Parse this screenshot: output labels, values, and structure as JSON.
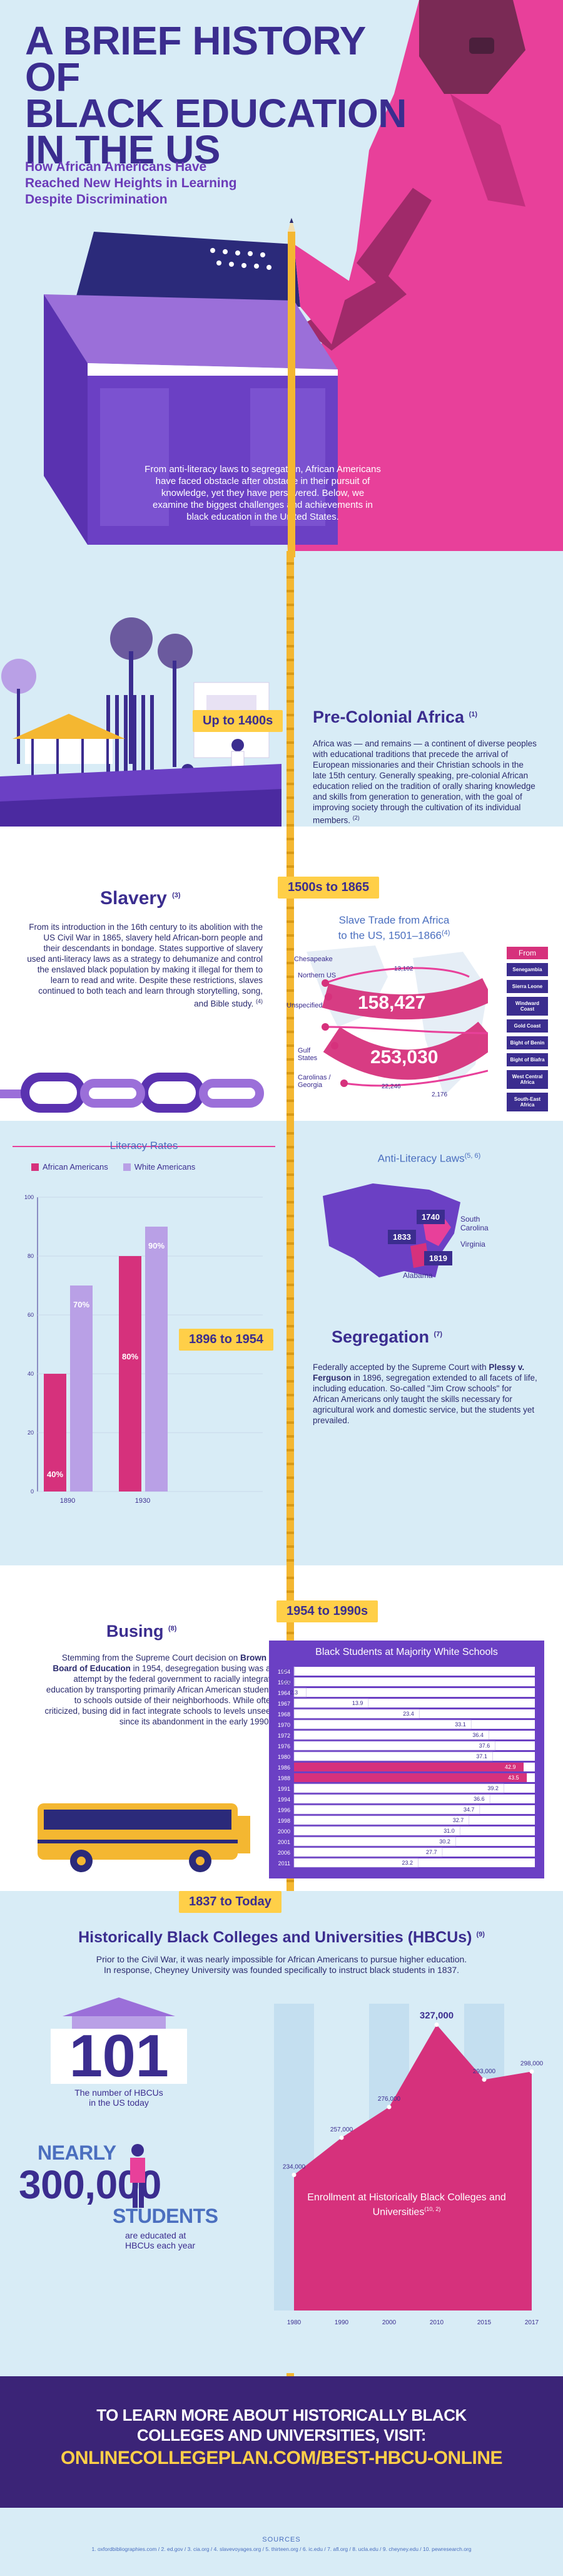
{
  "header": {
    "title_line1": "A BRIEF HISTORY OF",
    "title_line2": "BLACK EDUCATION",
    "title_line3": "IN THE US",
    "subtitle_line1": "How African Americans Have",
    "subtitle_line2": "Reached New Heights in Learning",
    "subtitle_line3": "Despite Discrimination"
  },
  "intro": "From anti-literacy laws to segregation, African Americans have faced obstacle after obstacle in their pursuit of knowledge, yet they have persevered. Below, we examine the biggest challenges and achievements in black education in the United States.",
  "periods": {
    "p1": "Up to 1400s",
    "p2": "1500s to 1865",
    "p3": "1896 to 1954",
    "p4": "1954 to 1990s",
    "p5": "1837 to Today"
  },
  "precolonial": {
    "title": "Pre-Colonial Africa",
    "ref": "(1)",
    "body": "Africa was — and remains — a continent of diverse peoples with educational traditions that precede the arrival of European missionaries and their Christian schools in the late 15th century. Generally speaking, pre-colonial African education relied on the tradition of orally sharing knowledge and skills from generation to generation, with the goal of improving society through the cultivation of its individual members.",
    "body_ref": "(2)"
  },
  "slavery": {
    "title": "Slavery",
    "ref": "(3)",
    "body": "From its introduction in the 16th century to its abolition with the US Civil War in 1865, slavery held African-born people and their descendants in bondage. States supportive of slavery used anti-literacy laws as a strategy to dehumanize and control the enslaved black population by making it illegal for them to learn to read and write. Despite these restrictions, slaves continued to both teach and learn through storytelling, song, and Bible study.",
    "body_ref": "(4)"
  },
  "slave_trade": {
    "title_line1": "Slave Trade from Africa",
    "title_line2": "to the US, 1501–1866",
    "ref": "(4)",
    "from_label": "From",
    "destinations": [
      "Chesapeake",
      "Northern US",
      "Unspecified",
      "Gulf States",
      "Carolinas / Georgia"
    ],
    "big1": "158,427",
    "big2": "253,030",
    "small1": "13,102",
    "small2": "22,246",
    "small3": "2,176",
    "origins": [
      "Senegambia",
      "Sierra Leone",
      "Windward Coast",
      "Gold Coast",
      "Bight of Benin",
      "Bight of Biafra",
      "West Central Africa",
      "South-East Africa"
    ]
  },
  "literacy": {
    "title": "Literacy Rates",
    "legend1": "African Americans",
    "legend2": "White Americans"
  },
  "antilit": {
    "title": "Anti-Literacy Laws",
    "ref": "(5, 6)",
    "y1740": "1740",
    "y1833": "1833",
    "y1819": "1819",
    "sc": "South Carolina",
    "va": "Virginia",
    "al": "Alabama"
  },
  "segregation": {
    "title": "Segregation",
    "ref": "(7)",
    "body_a": "Federally accepted by the Supreme Court with ",
    "case": "Plessy v. Ferguson",
    "body_b": " in 1896, segregation extended to all facets of life, including education. So-called \"Jim Crow schools\" for African Americans only taught the skills necessary for agricultural work and domestic service, but the students yet prevailed."
  },
  "busing": {
    "title": "Busing",
    "ref": "(8)",
    "body_a": "Stemming from the Supreme Court decision on ",
    "case": "Brown v. Board of Education",
    "body_b": " in 1954, desegregation busing was an attempt by the federal government to racially integrate education by transporting primarily African American students to schools outside of their neighborhoods. While often criticized, busing did in fact integrate schools to levels unseen since its abandonment in the early 1990s."
  },
  "hbcu": {
    "title": "Historically Black Colleges and Universities (HBCUs)",
    "ref": "(9)",
    "body_line1": "Prior to the Civil War, it was nearly impossible for African Americans to pursue higher education.",
    "body_line2": "In response, Cheyney University was founded specifically to instruct black students in 1837.",
    "count": "101",
    "count_label_line1": "The number of HBCUs",
    "count_label_line2": "in the US today",
    "nearly": "NEARLY",
    "students_num": "300,000",
    "students_word": "STUDENTS",
    "students_sub_line1": "are educated at",
    "students_sub_line2": "HBCUs each year"
  },
  "cta": {
    "line1": "TO LEARN MORE ABOUT HISTORICALLY BLACK",
    "line2": "COLLEGES AND UNIVERSITIES, VISIT:",
    "url": "ONLINECOLLEGEPLAN.COM/BEST-HBCU-ONLINE"
  },
  "sources": {
    "title": "SOURCES",
    "text": "1. oxfordbibliographies.com / 2. ed.gov / 3. cia.org / 4. slavevoyages.org / 5. thirteen.org / 6. ic.edu / 7. afl.org / 8. ucla.edu / 9. cheyney.edu / 10. pewresearch.org"
  },
  "chart_data": [
    {
      "type": "bar",
      "title": "Literacy Rates",
      "categories": [
        "1890",
        "1930"
      ],
      "series": [
        {
          "name": "African Americans",
          "values": [
            40,
            80
          ]
        },
        {
          "name": "White Americans",
          "values": [
            70,
            90
          ]
        }
      ],
      "value_labels": {
        "African Americans": [
          "40%",
          "80%"
        ],
        "White Americans": [
          "70%",
          "90%"
        ]
      },
      "yticks": [
        "0",
        "20",
        "40",
        "60",
        "80",
        "100"
      ],
      "ylim": [
        0,
        100
      ],
      "legend": "top"
    },
    {
      "type": "bar",
      "title": "Black Students at Majority White Schools",
      "orientation": "horizontal",
      "categories": [
        "1954",
        "1960",
        "1964",
        "1967",
        "1968",
        "1970",
        "1972",
        "1976",
        "1980",
        "1986",
        "1988",
        "1991",
        "1994",
        "1996",
        "1998",
        "2000",
        "2001",
        "2006",
        "2011"
      ],
      "values": [
        0,
        0.1,
        2.3,
        13.9,
        23.4,
        33.1,
        36.4,
        37.6,
        37.1,
        42.9,
        43.5,
        39.2,
        36.6,
        34.7,
        32.7,
        31.0,
        30.2,
        27.7,
        23.2
      ],
      "value_labels": [
        "0",
        "0.1",
        "2.3",
        "13.9",
        "23.4",
        "33.1",
        "36.4",
        "37.6",
        "37.1",
        "42.9",
        "43.5",
        "39.2",
        "36.6",
        "34.7",
        "32.7",
        "31.0",
        "30.2",
        "27.7",
        "23.2"
      ],
      "highlight": [
        "1986",
        "1988"
      ],
      "xlim": [
        0,
        45
      ]
    },
    {
      "type": "area",
      "title": "Enrollment at Historically Black Colleges and Universities",
      "title_ref": "(10, 2)",
      "x": [
        "1980",
        "1990",
        "2000",
        "2010",
        "2015",
        "2017"
      ],
      "values": [
        234000,
        257000,
        276000,
        327000,
        293000,
        298000
      ],
      "value_labels": [
        "234,000",
        "257,000",
        "276,000",
        "327,000",
        "293,000",
        "298,000"
      ],
      "ylim": [
        150000,
        340000
      ],
      "colors": {
        "area": "#d6317c",
        "columns": "#c4dff0"
      }
    }
  ]
}
